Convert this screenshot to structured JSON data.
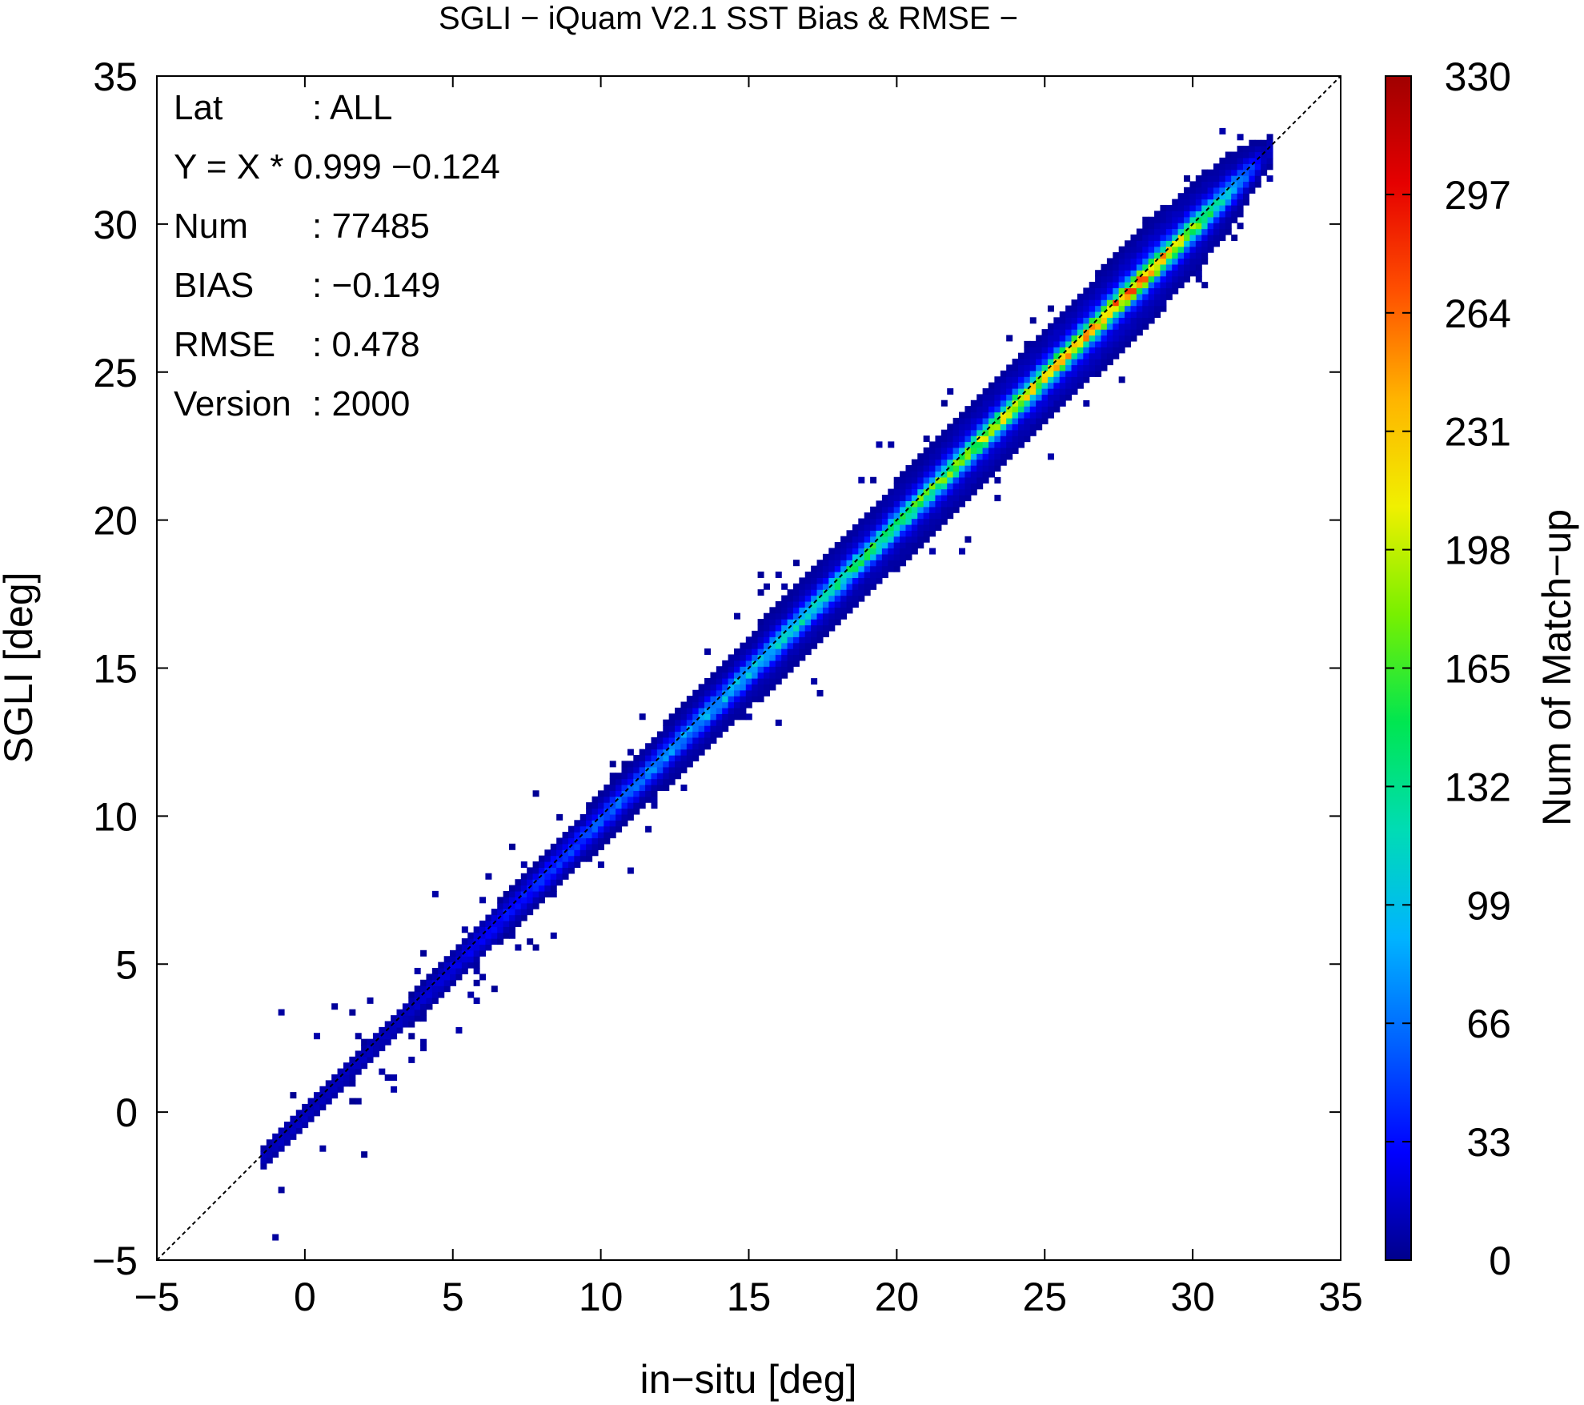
{
  "chart_data": {
    "type": "heatmap",
    "title": "SGLI − iQuam V2.1 SST Bias & RMSE  −",
    "xlabel": "in−situ [deg]",
    "ylabel": "SGLI [deg]",
    "xlim": [
      -5,
      35
    ],
    "ylim": [
      -5,
      35
    ],
    "x_ticks": [
      "−5",
      "0",
      "5",
      "10",
      "15",
      "20",
      "25",
      "30",
      "35"
    ],
    "y_ticks": [
      "−5",
      "0",
      "5",
      "10",
      "15",
      "20",
      "25",
      "30",
      "35"
    ],
    "x_tick_values": [
      -5,
      0,
      5,
      10,
      15,
      20,
      25,
      30,
      35
    ],
    "y_tick_values": [
      -5,
      0,
      5,
      10,
      15,
      20,
      25,
      30,
      35
    ],
    "reference_line": {
      "style": "dashed",
      "y_equals_x": true
    },
    "colorbar": {
      "label": "Num of Match−up",
      "min": 0,
      "max": 330,
      "ticks": [
        "0",
        "33",
        "66",
        "99",
        "132",
        "165",
        "198",
        "231",
        "264",
        "297",
        "330"
      ],
      "tick_values": [
        0,
        33,
        66,
        99,
        132,
        165,
        198,
        231,
        264,
        297,
        330
      ],
      "colors": [
        "#00008c",
        "#0000ff",
        "#0060ff",
        "#00b4ff",
        "#00dcb4",
        "#00e650",
        "#78f000",
        "#f0f000",
        "#ffb400",
        "#ff5000",
        "#e60000",
        "#a00000"
      ]
    },
    "density_model": {
      "slope": 0.999,
      "intercept": -0.124,
      "x_range": [
        -1.5,
        32.5
      ],
      "core_std": 0.28,
      "outer_std": 0.85,
      "peak_count": 330,
      "bin_size": 0.2
    },
    "stats": [
      {
        "label": "Lat",
        "value": ": ALL"
      },
      {
        "label": "Y = X * 0.999 −0.124",
        "value": ""
      },
      {
        "label": "Num",
        "value": ": 77485"
      },
      {
        "label": "BIAS",
        "value": ": −0.149"
      },
      {
        "label": "RMSE",
        "value": ": 0.478"
      },
      {
        "label": "Version",
        "value": ": 2000"
      }
    ],
    "grid": false
  }
}
